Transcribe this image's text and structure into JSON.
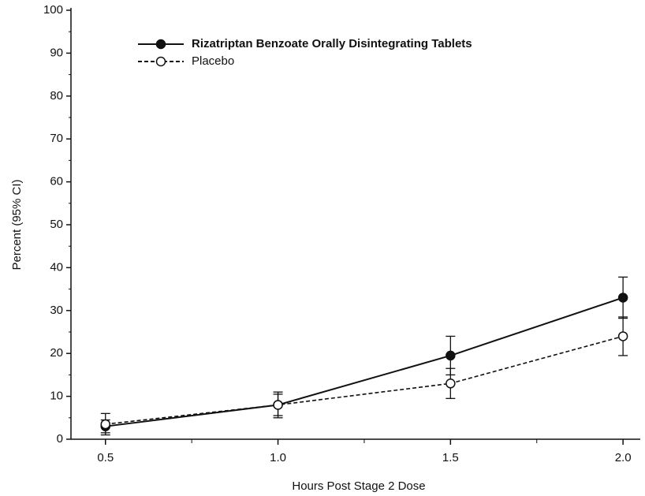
{
  "chart_data": {
    "type": "line",
    "x_label": "Hours Post Stage 2 Dose",
    "y_label": "Percent (95% CI)",
    "x": [
      0.5,
      1.0,
      1.5,
      2.0
    ],
    "xticks": [
      {
        "value": 0.5,
        "label": "0.5"
      },
      {
        "value": 1.0,
        "label": "1.0"
      },
      {
        "value": 1.5,
        "label": "1.5"
      },
      {
        "value": 2.0,
        "label": "2.0"
      }
    ],
    "xminor_ticks": [
      0.75,
      1.25,
      1.75
    ],
    "xlim": [
      0.4,
      2.05
    ],
    "ylim": [
      0,
      100
    ],
    "yticks": [
      0,
      10,
      20,
      30,
      40,
      50,
      60,
      70,
      80,
      90,
      100
    ],
    "yminor_ticks": [
      5,
      15,
      25,
      35,
      45,
      55,
      65,
      75,
      85,
      95
    ],
    "legend_position": "upper left",
    "series": [
      {
        "name": "Rizatriptan Benzoate Orally Disintegrating Tablets",
        "color": "#111111",
        "line_style": "solid",
        "marker": "filled",
        "values": [
          3,
          8,
          19.5,
          33
        ],
        "errors": [
          1.5,
          3,
          4.5,
          4.8
        ]
      },
      {
        "name": "Placebo",
        "color": "#111111",
        "line_style": "dashed",
        "marker": "open",
        "values": [
          3.5,
          8,
          13,
          24
        ],
        "errors": [
          2.5,
          2.5,
          3.5,
          4.5
        ]
      }
    ]
  }
}
